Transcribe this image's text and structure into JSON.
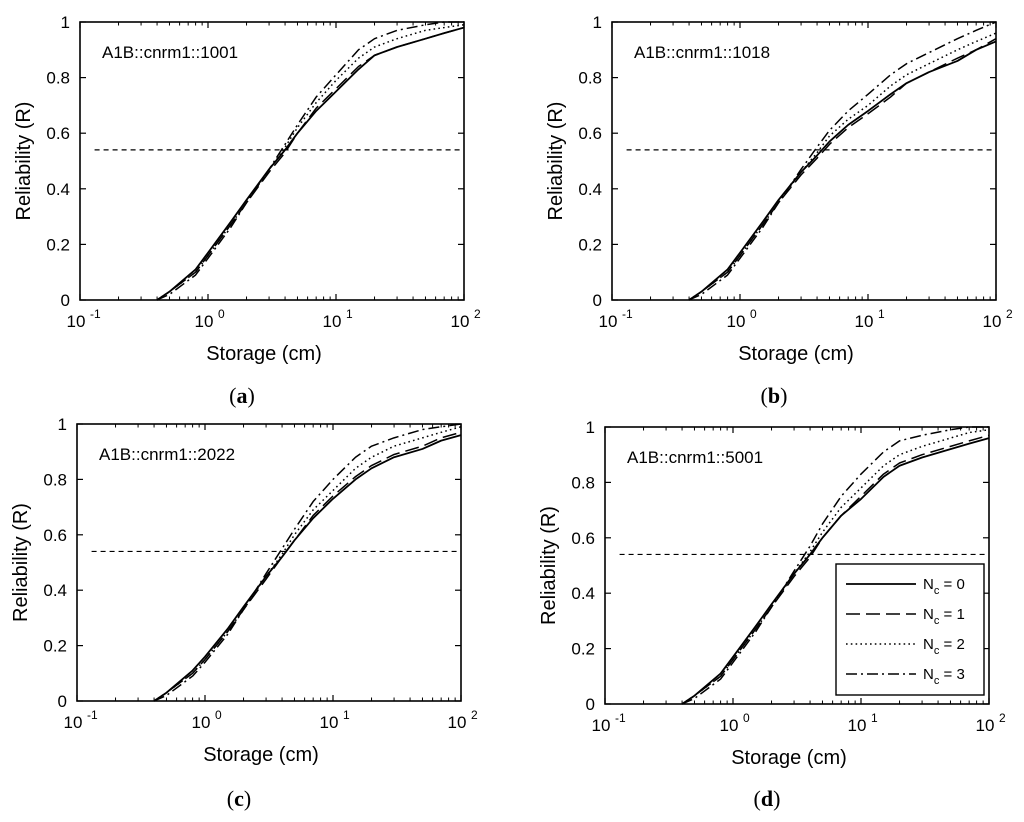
{
  "chart_data": [
    {
      "type": "line",
      "panel_label": "a",
      "annotation": "A1B::cnrm1::1001",
      "xlabel": "Storage (cm)",
      "ylabel": "Reliability (R)",
      "xscale": "log",
      "xlim": [
        0.1,
        100
      ],
      "ylim": [
        0,
        1
      ],
      "x_ticks": [
        "10",
        "10",
        "10",
        "10"
      ],
      "x_tick_exponents": [
        "-1",
        "0",
        "1",
        "2"
      ],
      "y_ticks": [
        "0",
        "0.2",
        "0.4",
        "0.6",
        "0.8",
        "1"
      ],
      "threshold_line": {
        "y": 0.54,
        "style": "dashed",
        "x_range": [
          0.13,
          100
        ]
      },
      "legend": null,
      "series": [
        {
          "name": "Nc = 0",
          "style": "solid",
          "x": [
            0.4,
            0.5,
            0.8,
            1.0,
            1.5,
            2,
            3,
            4,
            5,
            7,
            10,
            15,
            20,
            30,
            50,
            70,
            100
          ],
          "y": [
            0,
            0.03,
            0.11,
            0.17,
            0.28,
            0.36,
            0.47,
            0.54,
            0.6,
            0.68,
            0.75,
            0.83,
            0.88,
            0.91,
            0.94,
            0.96,
            0.98
          ]
        },
        {
          "name": "Nc = 1",
          "style": "dashed",
          "x": [
            0.4,
            0.5,
            0.8,
            1.0,
            1.5,
            2,
            3,
            4,
            5,
            7,
            10,
            15,
            20,
            30,
            50,
            70,
            100
          ],
          "y": [
            0,
            0.03,
            0.1,
            0.16,
            0.27,
            0.35,
            0.46,
            0.53,
            0.6,
            0.69,
            0.76,
            0.84,
            0.88,
            0.91,
            0.94,
            0.96,
            0.98
          ]
        },
        {
          "name": "Nc = 2",
          "style": "dotted",
          "x": [
            0.4,
            0.5,
            0.8,
            1.0,
            1.5,
            2,
            3,
            4,
            5,
            7,
            10,
            15,
            20,
            30,
            50,
            70,
            100
          ],
          "y": [
            0,
            0.03,
            0.1,
            0.16,
            0.27,
            0.35,
            0.47,
            0.55,
            0.62,
            0.71,
            0.79,
            0.87,
            0.91,
            0.94,
            0.97,
            0.98,
            0.99
          ]
        },
        {
          "name": "Nc = 3",
          "style": "dashdot",
          "x": [
            0.4,
            0.5,
            0.8,
            1.0,
            1.5,
            2,
            3,
            4,
            5,
            7,
            10,
            15,
            20,
            30,
            50,
            70,
            100
          ],
          "y": [
            0,
            0.02,
            0.09,
            0.15,
            0.26,
            0.35,
            0.47,
            0.56,
            0.63,
            0.73,
            0.81,
            0.9,
            0.94,
            0.97,
            0.99,
            1.0,
            1.0
          ]
        }
      ]
    },
    {
      "type": "line",
      "panel_label": "b",
      "annotation": "A1B::cnrm1::1018",
      "xlabel": "Storage (cm)",
      "ylabel": "Reliability (R)",
      "xscale": "log",
      "xlim": [
        0.1,
        100
      ],
      "ylim": [
        0,
        1
      ],
      "x_ticks": [
        "10",
        "10",
        "10",
        "10"
      ],
      "x_tick_exponents": [
        "-1",
        "0",
        "1",
        "2"
      ],
      "y_ticks": [
        "0",
        "0.2",
        "0.4",
        "0.6",
        "0.8",
        "1"
      ],
      "threshold_line": {
        "y": 0.54,
        "style": "dashed",
        "x_range": [
          0.13,
          100
        ]
      },
      "legend": null,
      "series": [
        {
          "name": "Nc = 0",
          "style": "solid",
          "x": [
            0.4,
            0.5,
            0.8,
            1.0,
            1.5,
            2,
            3,
            4,
            5,
            7,
            10,
            15,
            20,
            30,
            50,
            70,
            100
          ],
          "y": [
            0,
            0.03,
            0.11,
            0.17,
            0.28,
            0.36,
            0.46,
            0.52,
            0.57,
            0.63,
            0.68,
            0.74,
            0.78,
            0.82,
            0.86,
            0.9,
            0.93
          ]
        },
        {
          "name": "Nc = 1",
          "style": "dashed",
          "x": [
            0.4,
            0.5,
            0.8,
            1.0,
            1.5,
            2,
            3,
            4,
            5,
            7,
            10,
            15,
            20,
            30,
            50,
            70,
            100
          ],
          "y": [
            0,
            0.03,
            0.1,
            0.16,
            0.27,
            0.35,
            0.45,
            0.51,
            0.56,
            0.62,
            0.67,
            0.73,
            0.78,
            0.82,
            0.87,
            0.9,
            0.94
          ]
        },
        {
          "name": "Nc = 2",
          "style": "dotted",
          "x": [
            0.4,
            0.5,
            0.8,
            1.0,
            1.5,
            2,
            3,
            4,
            5,
            7,
            10,
            15,
            20,
            30,
            50,
            70,
            100
          ],
          "y": [
            0,
            0.03,
            0.1,
            0.16,
            0.27,
            0.35,
            0.46,
            0.53,
            0.59,
            0.65,
            0.7,
            0.77,
            0.81,
            0.85,
            0.9,
            0.93,
            0.96
          ]
        },
        {
          "name": "Nc = 3",
          "style": "dashdot",
          "x": [
            0.4,
            0.5,
            0.8,
            1.0,
            1.5,
            2,
            3,
            4,
            5,
            7,
            10,
            15,
            20,
            30,
            50,
            70,
            100
          ],
          "y": [
            0,
            0.02,
            0.09,
            0.15,
            0.26,
            0.35,
            0.47,
            0.55,
            0.61,
            0.68,
            0.74,
            0.81,
            0.85,
            0.89,
            0.94,
            0.97,
            1.0
          ]
        }
      ]
    },
    {
      "type": "line",
      "panel_label": "c",
      "annotation": "A1B::cnrm1::2022",
      "xlabel": "Storage (cm)",
      "ylabel": "Reliability (R)",
      "xscale": "log",
      "xlim": [
        0.1,
        100
      ],
      "ylim": [
        0,
        1
      ],
      "x_ticks": [
        "10",
        "10",
        "10",
        "10"
      ],
      "x_tick_exponents": [
        "-1",
        "0",
        "1",
        "2"
      ],
      "y_ticks": [
        "0",
        "0.2",
        "0.4",
        "0.6",
        "0.8",
        "1"
      ],
      "threshold_line": {
        "y": 0.54,
        "style": "dashed",
        "x_range": [
          0.13,
          100
        ]
      },
      "legend": null,
      "series": [
        {
          "name": "Nc = 0",
          "style": "solid",
          "x": [
            0.4,
            0.5,
            0.8,
            1.0,
            1.5,
            2,
            3,
            4,
            5,
            7,
            10,
            15,
            20,
            30,
            50,
            70,
            100
          ],
          "y": [
            0,
            0.03,
            0.11,
            0.16,
            0.26,
            0.34,
            0.45,
            0.52,
            0.58,
            0.66,
            0.73,
            0.8,
            0.84,
            0.88,
            0.91,
            0.94,
            0.96
          ]
        },
        {
          "name": "Nc = 1",
          "style": "dashed",
          "x": [
            0.4,
            0.5,
            0.8,
            1.0,
            1.5,
            2,
            3,
            4,
            5,
            7,
            10,
            15,
            20,
            30,
            50,
            70,
            100
          ],
          "y": [
            0,
            0.03,
            0.1,
            0.15,
            0.25,
            0.33,
            0.44,
            0.52,
            0.58,
            0.67,
            0.74,
            0.81,
            0.85,
            0.89,
            0.92,
            0.95,
            0.97
          ]
        },
        {
          "name": "Nc = 2",
          "style": "dotted",
          "x": [
            0.4,
            0.5,
            0.8,
            1.0,
            1.5,
            2,
            3,
            4,
            5,
            7,
            10,
            15,
            20,
            30,
            50,
            70,
            100
          ],
          "y": [
            0,
            0.03,
            0.1,
            0.15,
            0.25,
            0.33,
            0.45,
            0.53,
            0.6,
            0.69,
            0.76,
            0.84,
            0.88,
            0.92,
            0.95,
            0.97,
            0.99
          ]
        },
        {
          "name": "Nc = 3",
          "style": "dashdot",
          "x": [
            0.4,
            0.5,
            0.8,
            1.0,
            1.5,
            2,
            3,
            4,
            5,
            7,
            10,
            15,
            20,
            30,
            50,
            70,
            100
          ],
          "y": [
            0,
            0.02,
            0.09,
            0.14,
            0.24,
            0.33,
            0.46,
            0.55,
            0.62,
            0.72,
            0.8,
            0.88,
            0.92,
            0.95,
            0.98,
            0.99,
            1.0
          ]
        }
      ]
    },
    {
      "type": "line",
      "panel_label": "d",
      "annotation": "A1B::cnrm1::5001",
      "xlabel": "Storage (cm)",
      "ylabel": "Reliability (R)",
      "xscale": "log",
      "xlim": [
        0.1,
        100
      ],
      "ylim": [
        0,
        1
      ],
      "x_ticks": [
        "10",
        "10",
        "10",
        "10"
      ],
      "x_tick_exponents": [
        "-1",
        "0",
        "1",
        "2"
      ],
      "y_ticks": [
        "0",
        "0.2",
        "0.4",
        "0.6",
        "0.8",
        "1"
      ],
      "threshold_line": {
        "y": 0.54,
        "style": "dashed",
        "x_range": [
          0.13,
          100
        ]
      },
      "legend": {
        "placement": "lower-right",
        "entries": [
          {
            "style": "solid",
            "base": "N",
            "sub": "c",
            "rest": " = 0"
          },
          {
            "style": "dashed",
            "base": "N",
            "sub": "c",
            "rest": " = 1"
          },
          {
            "style": "dotted",
            "base": "N",
            "sub": "c",
            "rest": " = 2"
          },
          {
            "style": "dashdot",
            "base": "N",
            "sub": "c",
            "rest": " = 3"
          }
        ]
      },
      "series": [
        {
          "name": "Nc = 0",
          "style": "solid",
          "x": [
            0.4,
            0.5,
            0.8,
            1.0,
            1.5,
            2,
            3,
            4,
            5,
            7,
            10,
            15,
            20,
            30,
            50,
            70,
            100
          ],
          "y": [
            0,
            0.03,
            0.11,
            0.17,
            0.28,
            0.36,
            0.47,
            0.54,
            0.6,
            0.68,
            0.74,
            0.82,
            0.86,
            0.89,
            0.92,
            0.94,
            0.96
          ]
        },
        {
          "name": "Nc = 1",
          "style": "dashed",
          "x": [
            0.4,
            0.5,
            0.8,
            1.0,
            1.5,
            2,
            3,
            4,
            5,
            7,
            10,
            15,
            20,
            30,
            50,
            70,
            100
          ],
          "y": [
            0,
            0.03,
            0.1,
            0.16,
            0.27,
            0.35,
            0.46,
            0.53,
            0.6,
            0.68,
            0.75,
            0.83,
            0.87,
            0.9,
            0.93,
            0.95,
            0.97
          ]
        },
        {
          "name": "Nc = 2",
          "style": "dotted",
          "x": [
            0.4,
            0.5,
            0.8,
            1.0,
            1.5,
            2,
            3,
            4,
            5,
            7,
            10,
            15,
            20,
            30,
            50,
            70,
            100
          ],
          "y": [
            0,
            0.03,
            0.1,
            0.16,
            0.27,
            0.35,
            0.47,
            0.55,
            0.62,
            0.71,
            0.78,
            0.86,
            0.9,
            0.93,
            0.96,
            0.98,
            0.99
          ]
        },
        {
          "name": "Nc = 3",
          "style": "dashdot",
          "x": [
            0.4,
            0.5,
            0.8,
            1.0,
            1.5,
            2,
            3,
            4,
            5,
            7,
            10,
            15,
            20,
            30,
            50,
            70,
            100
          ],
          "y": [
            0,
            0.02,
            0.09,
            0.15,
            0.26,
            0.35,
            0.48,
            0.57,
            0.65,
            0.75,
            0.83,
            0.91,
            0.95,
            0.97,
            0.99,
            1.0,
            1.0
          ]
        }
      ]
    }
  ]
}
